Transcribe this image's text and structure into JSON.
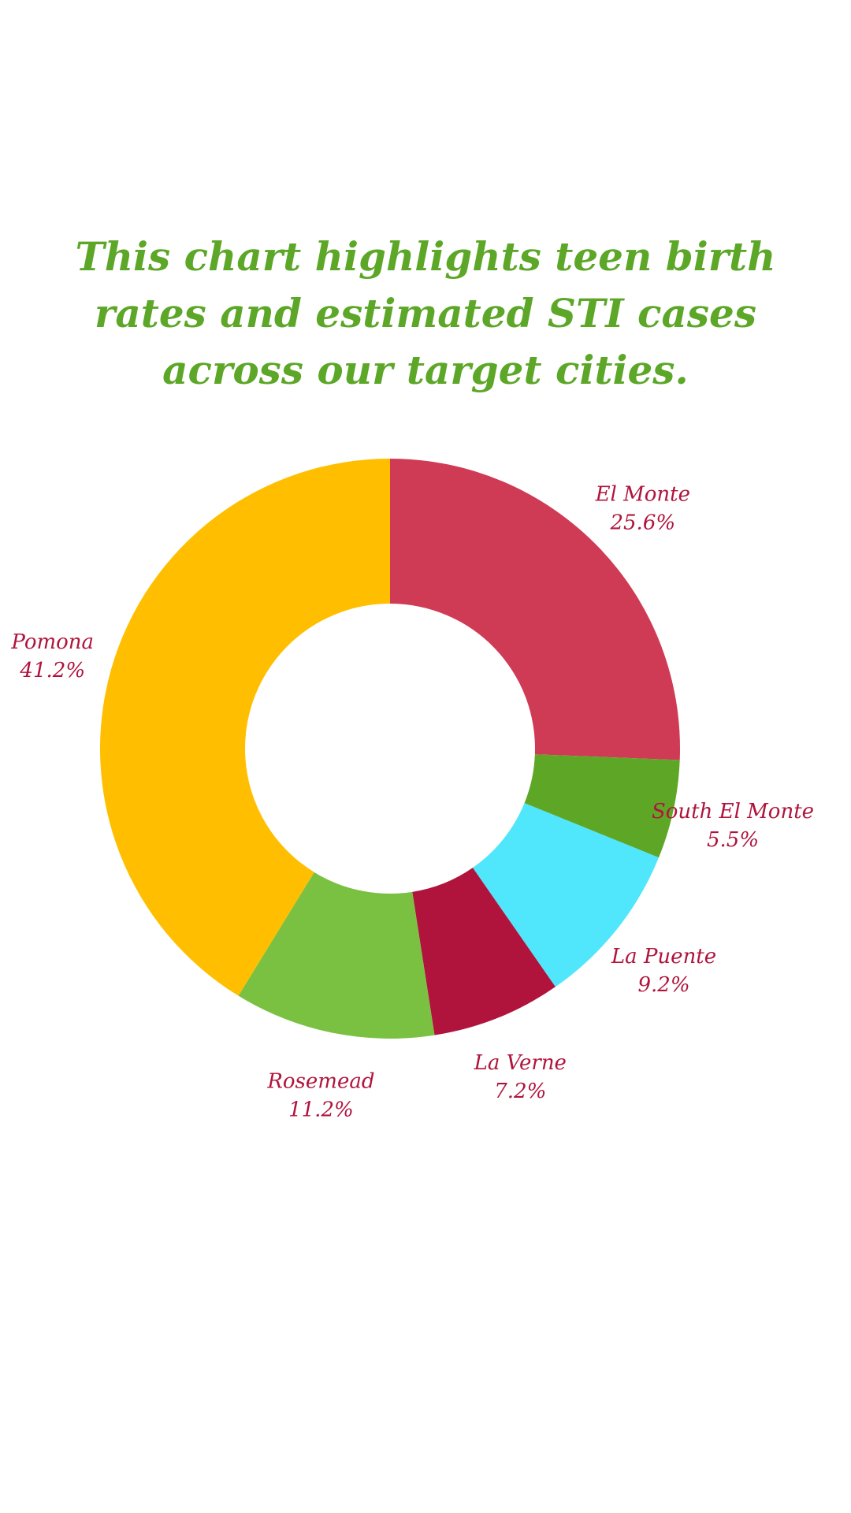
{
  "title": "This chart highlights teen birth rates and estimated STI cases across our target cities.",
  "colors": {
    "title": "#5ca727",
    "label": "#b0143c"
  },
  "chart_data": {
    "type": "pie",
    "hole": true,
    "title": "This chart highlights teen birth rates and estimated STI cases across our target cities.",
    "slices": [
      {
        "label": "El Monte",
        "value": 25.6,
        "display": "25.6%",
        "color": "#cf3b55"
      },
      {
        "label": "South El Monte",
        "value": 5.5,
        "display": "5.5%",
        "color": "#5ea726"
      },
      {
        "label": "La Puente",
        "value": 9.2,
        "display": "9.2%",
        "color": "#50e6fb"
      },
      {
        "label": "La Verne",
        "value": 7.2,
        "display": "7.2%",
        "color": "#b0143c"
      },
      {
        "label": "Rosemead",
        "value": 11.2,
        "display": "11.2%",
        "color": "#7ac142"
      },
      {
        "label": "Pomona",
        "value": 41.2,
        "display": "41.2%",
        "color": "#ffbf00"
      }
    ]
  }
}
